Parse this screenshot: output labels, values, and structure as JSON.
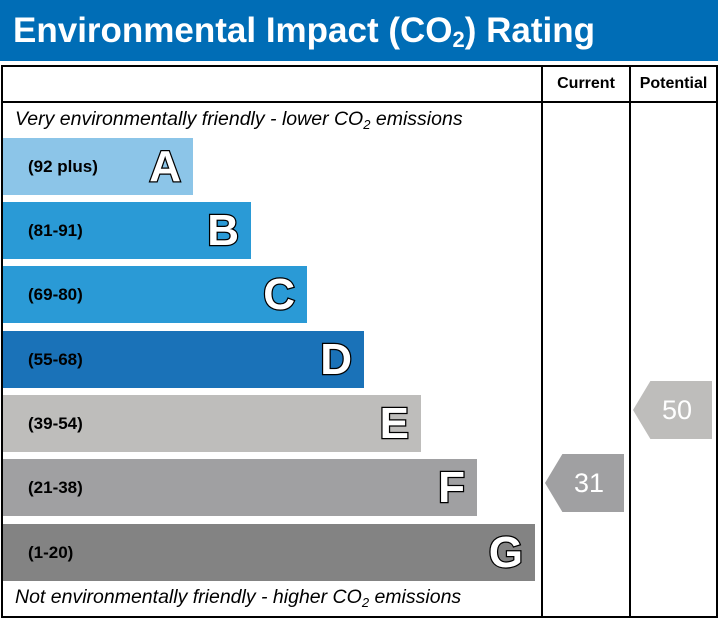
{
  "title": {
    "prefix": "Environmental Impact (CO",
    "sub": "2",
    "suffix": ") Rating"
  },
  "columns": {
    "current": "Current",
    "potential": "Potential"
  },
  "top_note": {
    "prefix": "Very environmentally friendly - lower CO",
    "sub": "2",
    "suffix": " emissions"
  },
  "bottom_note": {
    "prefix": "Not environmentally friendly - higher CO",
    "sub": "2",
    "suffix": " emissions"
  },
  "bands": [
    {
      "letter": "A",
      "range": "(92 plus)",
      "color": "#8cc5e8"
    },
    {
      "letter": "B",
      "range": "(81-91)",
      "color": "#2a9ad6"
    },
    {
      "letter": "C",
      "range": "(69-80)",
      "color": "#2a9ad6"
    },
    {
      "letter": "D",
      "range": "(55-68)",
      "color": "#1a72b8"
    },
    {
      "letter": "E",
      "range": "(39-54)",
      "color": "#bebdbb"
    },
    {
      "letter": "F",
      "range": "(21-38)",
      "color": "#a0a0a2"
    },
    {
      "letter": "G",
      "range": "(1-20)",
      "color": "#838383"
    }
  ],
  "current": {
    "value": "31",
    "color": "#a0a0a2"
  },
  "potential": {
    "value": "50",
    "color": "#bebdbb"
  }
}
